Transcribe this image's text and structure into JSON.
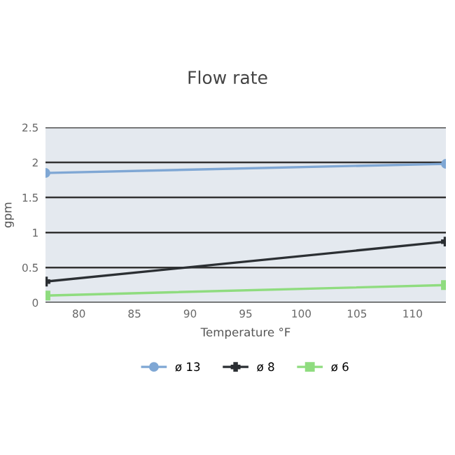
{
  "chart_data": {
    "type": "line",
    "title": "Flow rate",
    "xlabel": "Temperature °F",
    "ylabel": "gpm",
    "x": [
      77,
      113
    ],
    "series": [
      {
        "name": "ø 13",
        "color": "#7fa7d4",
        "values": [
          1.85,
          1.98
        ],
        "marker": "circle"
      },
      {
        "name": "ø 8",
        "color": "#2b2f33",
        "values": [
          0.3,
          0.87
        ],
        "marker": "cross"
      },
      {
        "name": "ø 6",
        "color": "#8fdc7f",
        "values": [
          0.1,
          0.25
        ],
        "marker": "square"
      }
    ],
    "xlim": [
      77,
      113
    ],
    "xticks": [
      80,
      85,
      90,
      95,
      100,
      105,
      110
    ],
    "ylim": [
      0,
      2.5
    ],
    "yticks": [
      0,
      0.5,
      1,
      1.5,
      2,
      2.5
    ],
    "grid": "y",
    "legend": "bottom"
  }
}
